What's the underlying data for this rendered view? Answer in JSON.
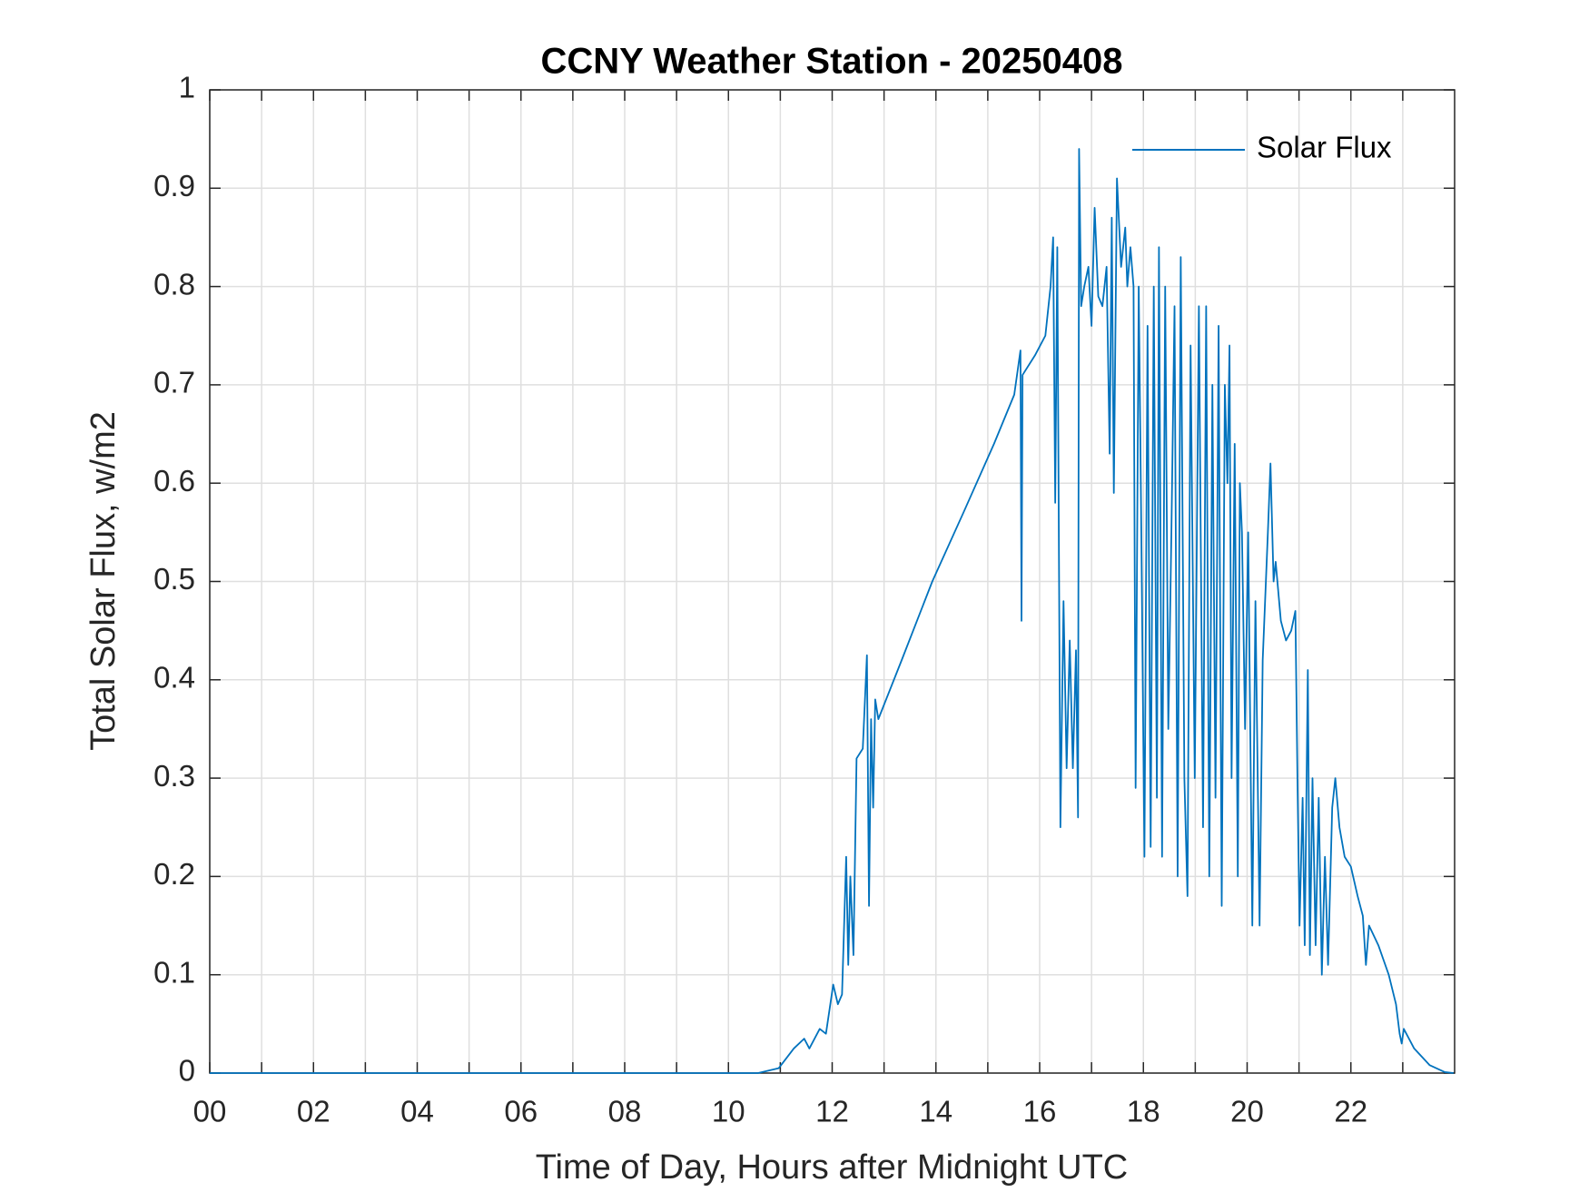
{
  "chart_data": {
    "type": "line",
    "title": "CCNY Weather Station - 20250408",
    "xlabel": "Time of Day, Hours after Midnight UTC",
    "ylabel": "Total Solar Flux, w/m2",
    "x": [
      0,
      10.5,
      10.57,
      10.97,
      11.26,
      11.46,
      11.56,
      11.76,
      11.88,
      12.02,
      12.11,
      12.19,
      12.27,
      12.31,
      12.35,
      12.41,
      12.47,
      12.59,
      12.67,
      12.71,
      12.75,
      12.79,
      12.83,
      12.89,
      13.34,
      13.93,
      14.53,
      15.12,
      15.51,
      15.63,
      15.65,
      15.67,
      15.91,
      16.11,
      16.21,
      16.26,
      16.3,
      16.34,
      16.4,
      16.46,
      16.52,
      16.58,
      16.64,
      16.7,
      16.74,
      16.76,
      16.8,
      16.86,
      16.94,
      17.0,
      17.06,
      17.13,
      17.21,
      17.29,
      17.35,
      17.39,
      17.43,
      17.49,
      17.57,
      17.65,
      17.69,
      17.75,
      17.81,
      17.85,
      17.91,
      17.96,
      18.02,
      18.08,
      18.14,
      18.2,
      18.26,
      18.3,
      18.36,
      18.42,
      18.48,
      18.54,
      18.6,
      18.66,
      18.72,
      18.79,
      18.85,
      18.91,
      18.99,
      19.07,
      19.15,
      19.21,
      19.27,
      19.33,
      19.39,
      19.45,
      19.51,
      19.57,
      19.62,
      19.66,
      19.7,
      19.76,
      19.82,
      19.86,
      19.9,
      19.96,
      20.02,
      20.1,
      20.16,
      20.24,
      20.3,
      20.4,
      20.45,
      20.51,
      20.55,
      20.65,
      20.75,
      20.85,
      20.93,
      20.97,
      21.01,
      21.07,
      21.11,
      21.17,
      21.21,
      21.26,
      21.32,
      21.38,
      21.44,
      21.5,
      21.56,
      21.64,
      21.7,
      21.78,
      21.88,
      22.0,
      22.13,
      22.23,
      22.29,
      22.35,
      22.53,
      22.73,
      22.87,
      22.94,
      22.98,
      23.02,
      23.22,
      23.52,
      23.81,
      23.98
    ],
    "series": [
      {
        "name": "Solar Flux",
        "color": "#0072BD",
        "values": [
          0,
          0,
          0,
          0.005,
          0.025,
          0.035,
          0.025,
          0.045,
          0.04,
          0.09,
          0.07,
          0.08,
          0.22,
          0.11,
          0.2,
          0.12,
          0.32,
          0.33,
          0.425,
          0.17,
          0.36,
          0.27,
          0.38,
          0.36,
          0.42,
          0.5,
          0.57,
          0.64,
          0.69,
          0.735,
          0.46,
          0.71,
          0.73,
          0.75,
          0.8,
          0.85,
          0.58,
          0.84,
          0.25,
          0.48,
          0.31,
          0.44,
          0.31,
          0.43,
          0.26,
          0.94,
          0.78,
          0.8,
          0.82,
          0.76,
          0.88,
          0.79,
          0.78,
          0.82,
          0.63,
          0.87,
          0.59,
          0.91,
          0.82,
          0.86,
          0.8,
          0.84,
          0.8,
          0.29,
          0.8,
          0.55,
          0.22,
          0.76,
          0.23,
          0.8,
          0.28,
          0.84,
          0.22,
          0.8,
          0.35,
          0.55,
          0.78,
          0.2,
          0.83,
          0.3,
          0.18,
          0.74,
          0.3,
          0.78,
          0.25,
          0.78,
          0.2,
          0.7,
          0.28,
          0.76,
          0.17,
          0.7,
          0.6,
          0.74,
          0.3,
          0.64,
          0.2,
          0.6,
          0.55,
          0.35,
          0.55,
          0.15,
          0.48,
          0.15,
          0.42,
          0.55,
          0.62,
          0.5,
          0.52,
          0.46,
          0.44,
          0.45,
          0.47,
          0.3,
          0.15,
          0.28,
          0.13,
          0.41,
          0.12,
          0.3,
          0.13,
          0.28,
          0.1,
          0.22,
          0.11,
          0.27,
          0.3,
          0.25,
          0.22,
          0.21,
          0.18,
          0.16,
          0.11,
          0.15,
          0.13,
          0.1,
          0.07,
          0.04,
          0.03,
          0.045,
          0.025,
          0.008,
          0.001,
          0
        ]
      }
    ],
    "xlim": [
      0,
      24
    ],
    "xticks": [
      {
        "value": 0,
        "label": "00"
      },
      {
        "value": 2,
        "label": "02"
      },
      {
        "value": 4,
        "label": "04"
      },
      {
        "value": 6,
        "label": "06"
      },
      {
        "value": 8,
        "label": "08"
      },
      10,
      12,
      14,
      16,
      18,
      20,
      22
    ],
    "xminorticks": [
      1,
      3,
      5,
      7,
      9,
      11,
      13,
      15,
      17,
      19,
      21,
      23
    ],
    "ylim": [
      0,
      1
    ],
    "yticks": [
      0,
      0.1,
      0.2,
      0.3,
      0.4,
      0.5,
      0.6,
      0.7,
      0.8,
      0.9,
      1
    ],
    "grid": true,
    "legend": "upper right"
  }
}
